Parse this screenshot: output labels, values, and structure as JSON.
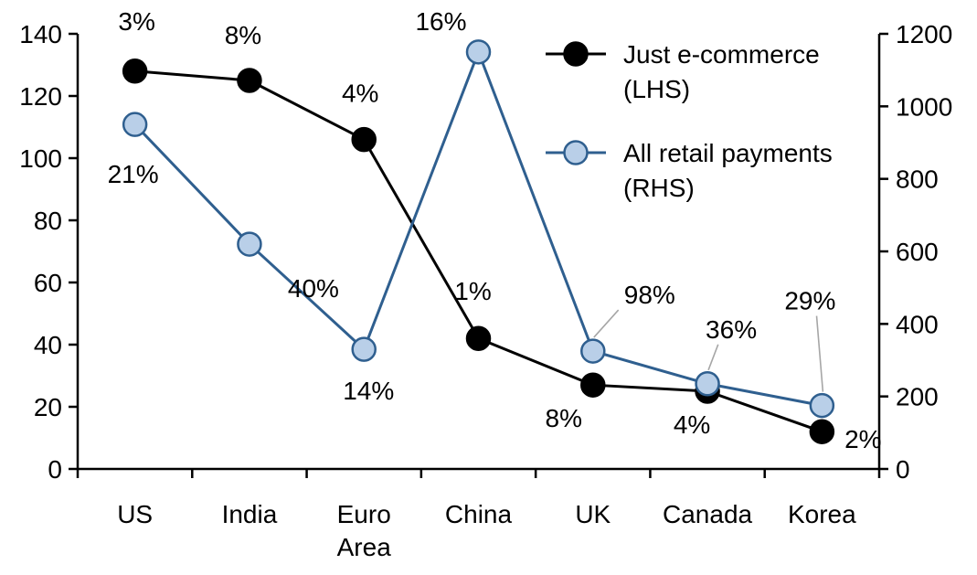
{
  "chart_data": {
    "type": "line",
    "title": "",
    "xlabel": "",
    "ylabel_left": "",
    "ylabel_right": "",
    "grid": false,
    "legend_position": "top-right",
    "categories": [
      "US",
      "India",
      "Euro Area",
      "China",
      "UK",
      "Canada",
      "Korea"
    ],
    "category_lines": [
      [
        "US"
      ],
      [
        "India"
      ],
      [
        "Euro",
        "Area"
      ],
      [
        "China"
      ],
      [
        "UK"
      ],
      [
        "Canada"
      ],
      [
        "Korea"
      ]
    ],
    "left_axis": {
      "min": 0,
      "max": 140,
      "tick_values": [
        0,
        20,
        40,
        60,
        80,
        100,
        120,
        140
      ],
      "tick_labels": [
        "0",
        "20",
        "40",
        "60",
        "80",
        "100",
        "120",
        "140"
      ]
    },
    "right_axis": {
      "min": 0,
      "max": 1200,
      "tick_values": [
        0,
        200,
        400,
        600,
        800,
        1000,
        1200
      ],
      "tick_labels": [
        "0",
        "200",
        "400",
        "600",
        "800",
        "1000",
        "1200"
      ]
    },
    "colors": {
      "axis": "#000000",
      "black_series": "#000000",
      "blue_line": "#2f5f8f",
      "blue_marker_fill": "#b9cfe8",
      "leader_line": "#a6a6a6",
      "label_text": "#000000"
    },
    "series": [
      {
        "name": "Just e-commerce (LHS)",
        "legend_lines": [
          "Just e-commerce",
          "(LHS)"
        ],
        "axis": "left",
        "line_color": "#000000",
        "marker_fill": "#000000",
        "marker_stroke": "#000000",
        "values": [
          128,
          125,
          106,
          42,
          27,
          25,
          12
        ],
        "point_labels": [
          {
            "text": "3%",
            "dx": 2,
            "dy": -45
          },
          {
            "text": "8%",
            "dx": -7,
            "dy": -40
          },
          {
            "text": "4%",
            "dx": -4,
            "dy": -41
          },
          {
            "text": "1%",
            "dx": -6,
            "dy": -42
          },
          {
            "text": "8%",
            "dx": -32,
            "dy": 46
          },
          {
            "text": "4%",
            "dx": -17,
            "dy": 46
          },
          {
            "text": "2%",
            "dx": 45,
            "dy": 18
          }
        ]
      },
      {
        "name": "All retail payments (RHS)",
        "legend_lines": [
          "All retail payments",
          "(RHS)"
        ],
        "axis": "right",
        "line_color": "#2f5f8f",
        "marker_fill": "#b9cfe8",
        "marker_stroke": "#2f5f8f",
        "values": [
          950,
          620,
          330,
          1150,
          325,
          235,
          175
        ],
        "point_labels": [
          {
            "text": "21%",
            "dx": -2,
            "dy": 64
          },
          {
            "text": "40%",
            "dx": 70,
            "dy": 58
          },
          {
            "text": "14%",
            "dx": 5,
            "dy": 55
          },
          {
            "text": "16%",
            "dx": -41,
            "dy": -24
          },
          {
            "text": "98%",
            "dx": 62,
            "dy": -52,
            "leader": true
          },
          {
            "text": "36%",
            "dx": 26,
            "dy": -50,
            "leader": true
          },
          {
            "text": "29%",
            "dx": -13,
            "dy": -105,
            "leader": true
          }
        ]
      }
    ]
  }
}
